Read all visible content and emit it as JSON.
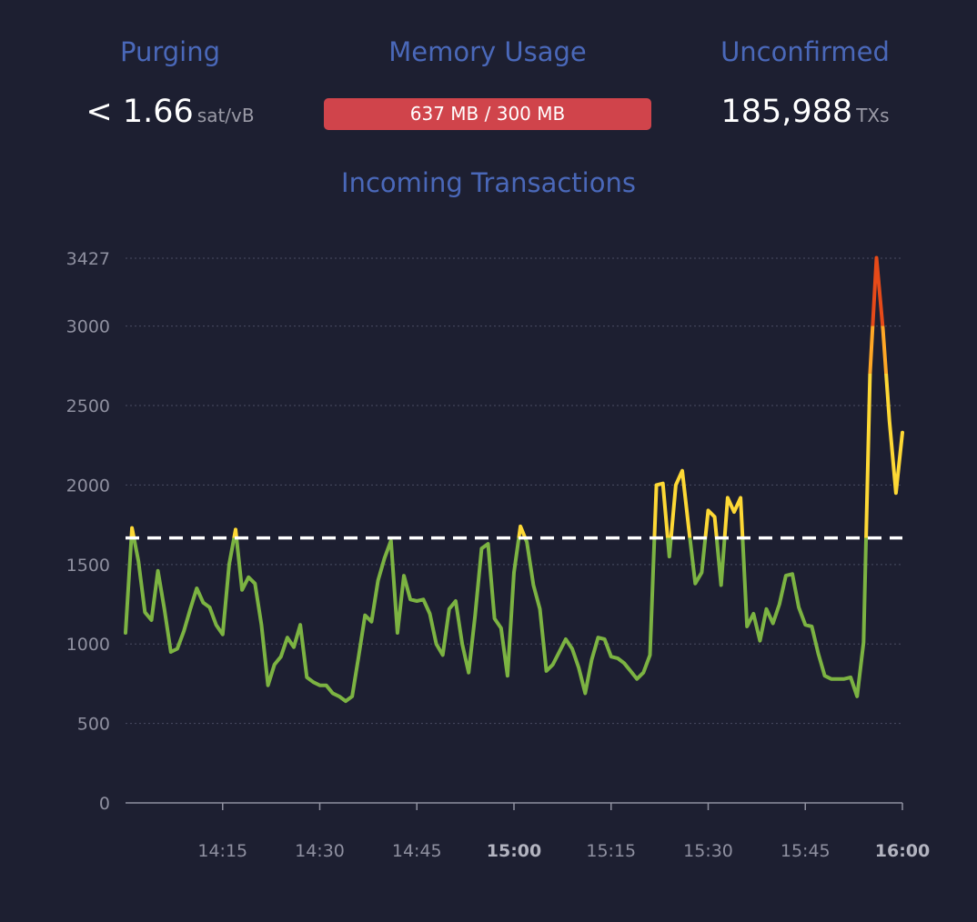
{
  "stats": {
    "purging": {
      "title": "Purging",
      "value": "< 1.66",
      "unit": "sat/vB"
    },
    "memory": {
      "title": "Memory Usage",
      "label": "637 MB / 300 MB",
      "fill_fraction": 1.0,
      "color": "#d0444b"
    },
    "unconfirmed": {
      "title": "Unconfirmed",
      "value": "185,988",
      "unit": "TXs"
    }
  },
  "chart_data": {
    "type": "line",
    "title": "Incoming Transactions",
    "xlabel": "",
    "ylabel": "",
    "ylim": [
      0,
      3427
    ],
    "yticks": [
      0,
      500,
      1000,
      1500,
      2000,
      2500,
      3000,
      3427
    ],
    "xlim": [
      "14:01",
      "16:01"
    ],
    "xticks": [
      {
        "label": "14:15",
        "minute": 15,
        "bold": false
      },
      {
        "label": "14:30",
        "minute": 30,
        "bold": false
      },
      {
        "label": "14:45",
        "minute": 45,
        "bold": false
      },
      {
        "label": "15:00",
        "minute": 60,
        "bold": true
      },
      {
        "label": "15:15",
        "minute": 75,
        "bold": false
      },
      {
        "label": "15:30",
        "minute": 90,
        "bold": false
      },
      {
        "label": "15:45",
        "minute": 105,
        "bold": false
      },
      {
        "label": "16:00",
        "minute": 120,
        "bold": true
      }
    ],
    "grid": true,
    "threshold_line": 1667,
    "color_bands": [
      {
        "max": 1667,
        "color": "#7cb342"
      },
      {
        "max": 2700,
        "color": "#fdd835"
      },
      {
        "max": 3000,
        "color": "#ffa726"
      },
      {
        "max": 99999,
        "color": "#e64a19"
      }
    ],
    "series": [
      {
        "x": [
          0,
          1,
          2,
          3,
          4,
          5,
          6,
          7,
          8,
          9,
          10,
          11,
          12,
          13,
          14,
          15,
          16,
          17,
          18,
          19,
          20,
          21,
          22,
          23,
          24,
          25,
          26,
          27,
          28,
          29,
          30,
          31,
          32,
          33,
          34,
          35,
          36,
          37,
          38,
          39,
          40,
          41,
          42,
          43,
          44,
          45,
          46,
          47,
          48,
          49,
          50,
          51,
          52,
          53,
          54,
          55,
          56,
          57,
          58,
          59,
          60,
          61,
          62,
          63,
          64,
          65,
          66,
          67,
          68,
          69,
          70,
          71,
          72,
          73,
          74,
          75,
          76,
          77,
          78,
          79,
          80,
          81,
          82,
          83,
          84,
          85,
          86,
          87,
          88,
          89,
          90,
          91,
          92,
          93,
          94,
          95,
          96,
          97,
          98,
          99,
          100,
          101,
          102,
          103,
          104,
          105,
          106,
          107,
          108,
          109,
          110,
          111,
          112,
          113,
          114,
          115,
          116,
          117,
          118,
          119,
          120
        ],
        "values": [
          1070,
          1730,
          1520,
          1200,
          1150,
          1460,
          1220,
          950,
          970,
          1080,
          1220,
          1350,
          1260,
          1230,
          1120,
          1060,
          1500,
          1720,
          1340,
          1420,
          1380,
          1120,
          740,
          870,
          920,
          1040,
          980,
          1120,
          790,
          760,
          740,
          740,
          690,
          670,
          640,
          670,
          920,
          1180,
          1140,
          1400,
          1540,
          1650,
          1070,
          1430,
          1280,
          1270,
          1280,
          1190,
          1000,
          930,
          1220,
          1270,
          1000,
          820,
          1180,
          1600,
          1630,
          1160,
          1100,
          800,
          1450,
          1740,
          1640,
          1370,
          1220,
          830,
          870,
          950,
          1030,
          970,
          850,
          690,
          900,
          1040,
          1030,
          920,
          910,
          880,
          830,
          780,
          820,
          930,
          2000,
          2010,
          1550,
          2000,
          2090,
          1730,
          1380,
          1450,
          1840,
          1800,
          1370,
          1920,
          1830,
          1920,
          1110,
          1190,
          1020,
          1220,
          1130,
          1250,
          1430,
          1440,
          1230,
          1120,
          1110,
          940,
          800,
          780,
          780,
          780,
          790,
          670,
          1010,
          2700,
          3430,
          2980,
          2400,
          1950,
          2330
        ]
      }
    ]
  }
}
